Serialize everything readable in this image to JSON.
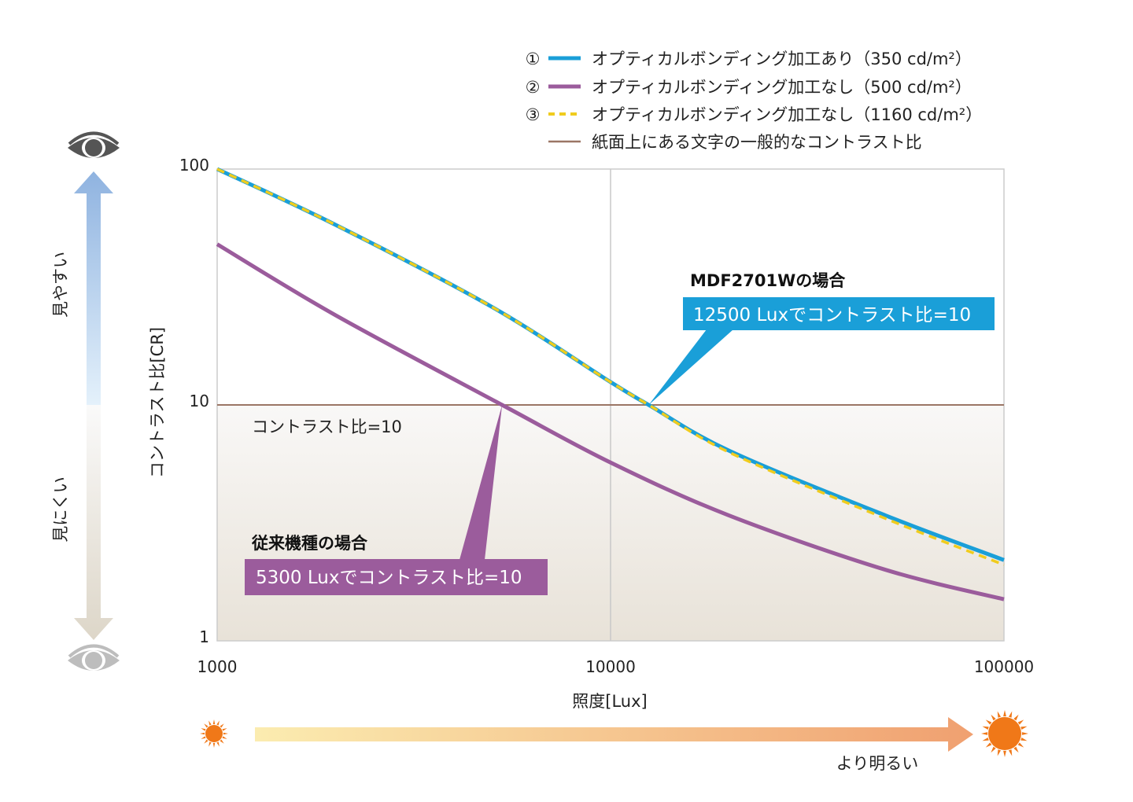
{
  "chart_data": {
    "type": "line",
    "x_scale": "log",
    "y_scale": "log",
    "xlim": [
      1000,
      100000
    ],
    "ylim": [
      1,
      100
    ],
    "x_ticks": [
      "1000",
      "10000",
      "100000"
    ],
    "y_ticks": [
      "1",
      "10",
      "100"
    ],
    "xlabel": "照度[Lux]",
    "ylabel": "コントラスト比[CR]",
    "grid": "x=10000 vertical line",
    "legend_position": "top-right",
    "series": [
      {
        "marker": "①",
        "name": "オプティカルボンディング加工あり（350 cd/m²）",
        "color": "#1a9fd8",
        "style": "solid",
        "x": [
          1000,
          2000,
          5000,
          10000,
          12500,
          20000,
          50000,
          100000
        ],
        "y": [
          100,
          58,
          26,
          12.5,
          10,
          6.4,
          3.4,
          2.2
        ]
      },
      {
        "marker": "②",
        "name": "オプティカルボンディング加工なし（500 cd/m²）",
        "color": "#9b5c9c",
        "style": "solid",
        "x": [
          1000,
          2000,
          5300,
          10000,
          20000,
          50000,
          100000
        ],
        "y": [
          48,
          24,
          10,
          5.7,
          3.4,
          2.0,
          1.5
        ]
      },
      {
        "marker": "③",
        "name": "オプティカルボンディング加工なし（1160 cd/m²）",
        "color": "#f0cc1e",
        "style": "dashed",
        "x": [
          1000,
          2000,
          5000,
          10000,
          12500,
          20000,
          50000,
          100000
        ],
        "y": [
          100,
          58,
          26,
          12.5,
          10,
          6.3,
          3.3,
          2.1
        ]
      },
      {
        "marker": "",
        "name": "紙面上にある文字の一般的なコントラスト比",
        "color": "#9b7665",
        "style": "solid",
        "x": [
          1000,
          100000
        ],
        "y": [
          10,
          10
        ]
      }
    ],
    "annotations": {
      "reference_label": "コントラスト比=10",
      "mdf_title": "MDF2701Wの場合",
      "mdf_callout": "12500 Luxでコントラスト比=10",
      "mdf_point": {
        "x": 12500,
        "y": 10
      },
      "conv_title": "従来機種の場合",
      "conv_callout": "5300 Luxでコントラスト比=10",
      "conv_point": {
        "x": 5300,
        "y": 10
      },
      "easy_to_see": "見やすい",
      "hard_to_see": "見にくい",
      "brighter": "より明るい"
    },
    "colors": {
      "lower_band_top": "#f9f8f7",
      "lower_band_bottom": "#e8e2d8",
      "plot_border": "#cccccc",
      "arrow_up_top": "#8fb3e0",
      "arrow_down_bottom": "#ddd6c8",
      "arrow_right_left": "#fbecb0",
      "arrow_right_right": "#f0a070",
      "sun": "#f07818"
    }
  }
}
